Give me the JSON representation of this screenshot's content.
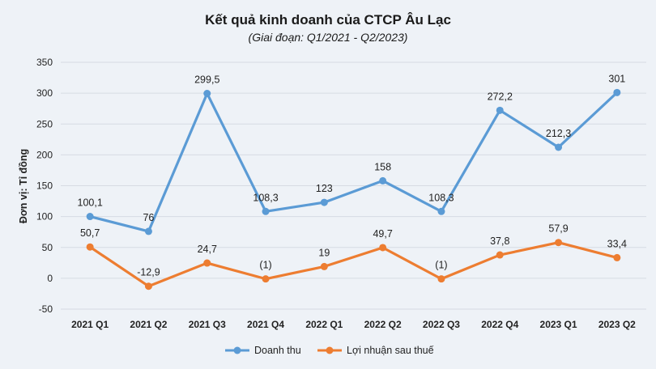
{
  "chart_data": {
    "type": "line",
    "title": "Kết quả kinh doanh của CTCP Âu Lạc",
    "subtitle": "(Giai đoạn: Q1/2021 - Q2/2023)",
    "ylabel": "Đơn vị: Tỉ đồng",
    "xlabel": "",
    "ylim": [
      -50,
      350
    ],
    "yticks": [
      -50,
      0,
      50,
      100,
      150,
      200,
      250,
      300,
      350
    ],
    "grid": true,
    "legend": "bottom",
    "categories": [
      "2021 Q1",
      "2021 Q2",
      "2021 Q3",
      "2021 Q4",
      "2022 Q1",
      "2022 Q2",
      "2022 Q3",
      "2022 Q4",
      "2023 Q1",
      "2023 Q2"
    ],
    "series": [
      {
        "name": "Doanh thu",
        "color": "#5b9bd5",
        "values": [
          100.1,
          76,
          299.5,
          108.3,
          123,
          158,
          108.3,
          272.2,
          212.3,
          301
        ],
        "labels": [
          "100,1",
          "76",
          "299,5",
          "108,3",
          "123",
          "158",
          "108,3",
          "272,2",
          "212,3",
          "301"
        ]
      },
      {
        "name": "Lợi nhuận sau thuế",
        "color": "#ed7d31",
        "values": [
          50.7,
          -12.9,
          24.7,
          -1,
          19,
          49.7,
          -1,
          37.8,
          57.9,
          33.4
        ],
        "labels": [
          "50,7",
          "-12,9",
          "24,7",
          "(1)",
          "19",
          "49,7",
          "(1)",
          "37,8",
          "57,9",
          "33,4"
        ]
      }
    ]
  }
}
